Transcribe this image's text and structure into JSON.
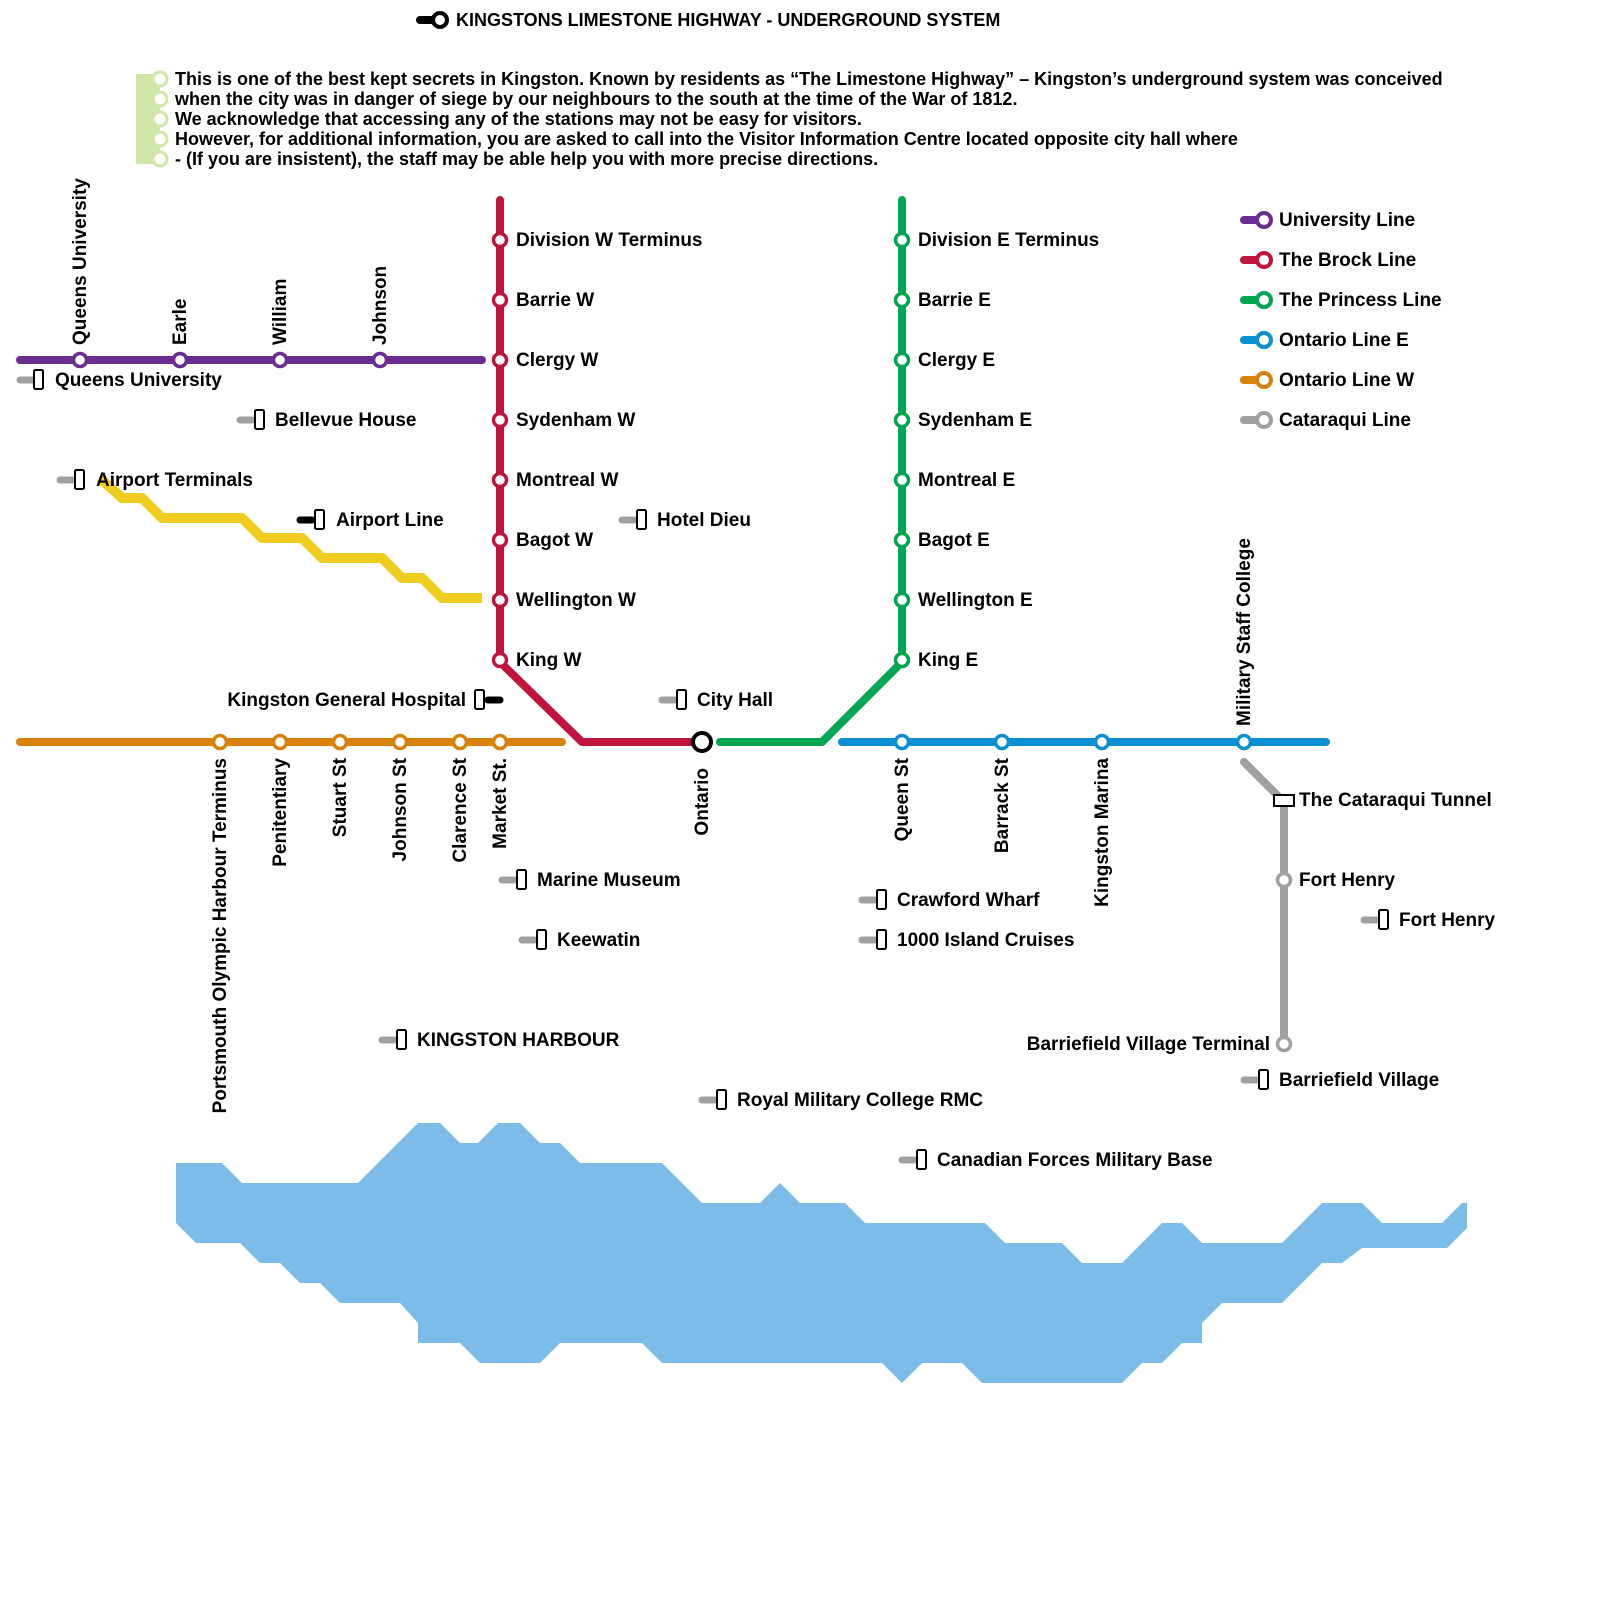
{
  "title": "KINGSTONS LIMESTONE HIGHWAY - UNDERGROUND SYSTEM",
  "intro": [
    "This is one of the best kept secrets in Kingston. Known by residents as “The Limestone Highway” – Kingston’s underground system was conceived",
    "when the city was in danger of siege by our neighbours to the south at the time of the War of 1812.",
    "We acknowledge that accessing any of the stations may not be easy for visitors.",
    "However, for additional information, you are asked to call into the Visitor Information Centre located opposite city hall where",
    "- (If you are insistent), the staff may be able help you with more precise directions."
  ],
  "colors": {
    "university": "#6b2c91",
    "brock": "#c0143c",
    "princess": "#00a651",
    "ontario_e": "#0b8fd3",
    "ontario_w": "#d9820b",
    "cataraqui": "#a0a0a0",
    "airport": "#f0cc1e",
    "intro": "#cfe6a6",
    "water": "#7bbde8"
  },
  "legend": [
    {
      "label": "University Line",
      "color": "#6b2c91"
    },
    {
      "label": "The Brock Line",
      "color": "#c0143c"
    },
    {
      "label": "The Princess Line",
      "color": "#00a651"
    },
    {
      "label": "Ontario Line E",
      "color": "#0b8fd3"
    },
    {
      "label": "Ontario Line W",
      "color": "#d9820b"
    },
    {
      "label": "Cataraqui Line",
      "color": "#a0a0a0"
    }
  ],
  "stations": {
    "university": [
      "Queens University",
      "Earle",
      "William",
      "Johnson"
    ],
    "brock": [
      "Division W Terminus",
      "Barrie W",
      "Clergy W",
      "Sydenham W",
      "Montreal W",
      "Bagot W",
      "Wellington W",
      "King W"
    ],
    "princess": [
      "Division E Terminus",
      "Barrie E",
      "Clergy E",
      "Sydenham E",
      "Montreal E",
      "Bagot E",
      "Wellington E",
      "King E"
    ],
    "ontario_w": [
      "Portsmouth Olympic Harbour Terminus",
      "Penitentiary",
      "Stuart St",
      "Johnson St",
      "Clarence St",
      "Market St."
    ],
    "interchange": "Ontario",
    "ontario_e": [
      "Queen St",
      "Barrack St",
      "Kingston Marina",
      "Military Staff College"
    ],
    "cataraqui": [
      "The Cataraqui Tunnel",
      "Fort Henry",
      "Barriefield Village Terminal"
    ]
  },
  "places": {
    "queens_university": "Queens University",
    "bellevue_house": "Bellevue House",
    "airport_terminals": "Airport Terminals",
    "airport_line": "Airport Line",
    "hotel_dieu": "Hotel Dieu",
    "kingston_general_hospital": "Kingston General Hospital",
    "city_hall": "City Hall",
    "marine_museum": "Marine Museum",
    "keewatin": "Keewatin",
    "crawford_wharf": "Crawford Wharf",
    "thousand_island_cruises": "1000 Island Cruises",
    "fort_henry": "Fort Henry",
    "kingston_harbour": "KINGSTON HARBOUR",
    "royal_military_college": "Royal Military College RMC",
    "canadian_forces_base": "Canadian Forces Military Base",
    "barriefield_village": "Barriefield Village"
  }
}
